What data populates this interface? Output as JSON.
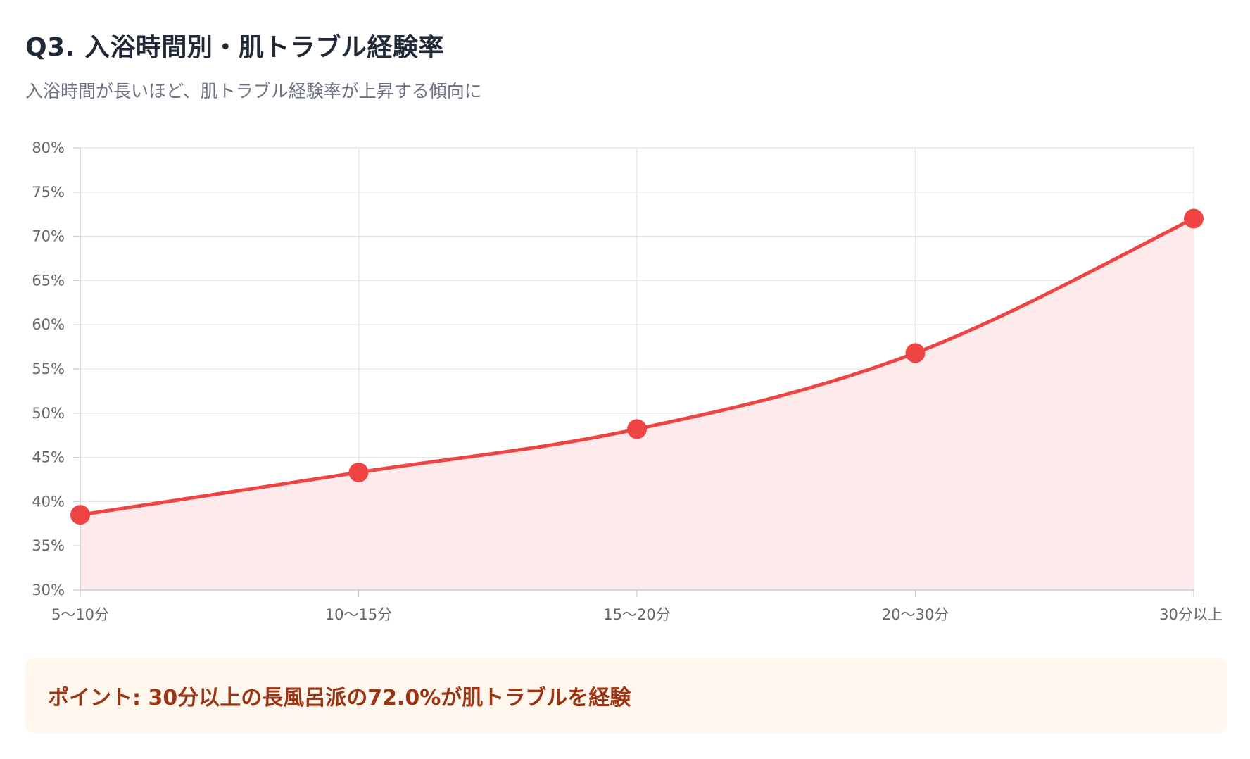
{
  "header": {
    "title": "Q3. 入浴時間別・肌トラブル経験率",
    "subtitle": "入浴時間が長いほど、肌トラブル経験率が上昇する傾向に"
  },
  "note": {
    "text": "ポイント: 30分以上の長風呂派の72.0%が肌トラブルを経験"
  },
  "colors": {
    "line": "#ef4444",
    "fill": "#fde8e8",
    "grid": "#e5e5e5",
    "note_bg": "#fff7ed",
    "note_text": "#9a3412"
  },
  "chart_data": {
    "type": "area",
    "title": "Q3. 入浴時間別・肌トラブル経験率",
    "xlabel": "",
    "ylabel": "",
    "categories": [
      "5〜10分",
      "10〜15分",
      "15〜20分",
      "20〜30分",
      "30分以上"
    ],
    "series": [
      {
        "name": "肌トラブル経験率",
        "values": [
          38.5,
          43.3,
          48.2,
          56.8,
          72.0
        ]
      }
    ],
    "ylim": [
      30,
      80
    ],
    "ytick_step": 5,
    "y_tick_suffix": "%",
    "grid": true,
    "legend": "none"
  }
}
